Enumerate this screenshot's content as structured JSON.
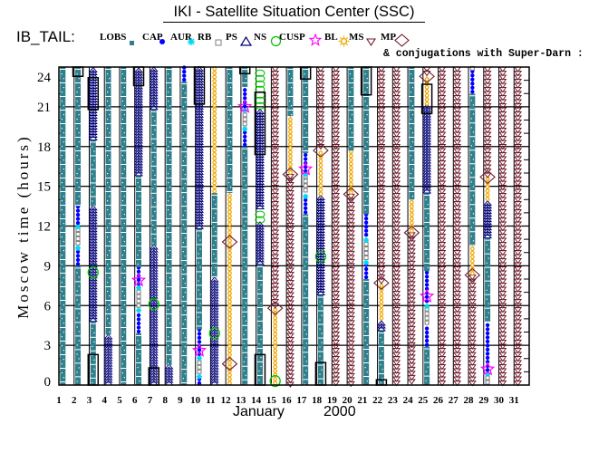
{
  "title": "IKI - Satellite Situation Center (SSC)",
  "legend": {
    "prefix": "IB_TAIL:",
    "items": [
      {
        "label": "LOBS",
        "icon": "teal-square",
        "color": "#2f7f8c"
      },
      {
        "label": "CAP",
        "icon": "blue-dot",
        "color": "#0000ff"
      },
      {
        "label": "AUR",
        "icon": "cyan-asterisk",
        "color": "#00d8f0"
      },
      {
        "label": "RB",
        "icon": "gray-square",
        "color": "#7f7f7f"
      },
      {
        "label": "PS",
        "icon": "navy-triangle",
        "color": "#000078"
      },
      {
        "label": "NS",
        "icon": "green-circle",
        "color": "#00c000"
      },
      {
        "label": "CUSP",
        "icon": "magenta-star",
        "color": "#ff00ff"
      },
      {
        "label": "BL",
        "icon": "orange-sun",
        "color": "#f0a800"
      },
      {
        "label": "MS",
        "icon": "maroon-down-triangle",
        "color": "#701c2c"
      },
      {
        "label": "MP",
        "icon": "maroon-diamond",
        "color": "#701c2c"
      }
    ],
    "note": "& conjugations with Super-Darn :"
  },
  "chart_data": {
    "type": "bar",
    "title": "IKI - Satellite Situation Center (SSC)",
    "ylabel": "Moscow time (hours)",
    "xlabel_month": "January",
    "xlabel_year": "2000",
    "ylim": [
      0,
      24
    ],
    "yticks": [
      0,
      3,
      6,
      9,
      12,
      15,
      18,
      21,
      24
    ],
    "grid": true,
    "conjugation_color": "#000000",
    "categories": [
      "1",
      "2",
      "3",
      "4",
      "5",
      "6",
      "7",
      "8",
      "9",
      "10",
      "11",
      "12",
      "13",
      "14",
      "15",
      "16",
      "17",
      "18",
      "19",
      "20",
      "21",
      "22",
      "23",
      "24",
      "25",
      "26",
      "27",
      "28",
      "29",
      "30",
      "31"
    ],
    "days": [
      {
        "segments": [
          [
            "LOBS",
            0,
            24
          ]
        ]
      },
      {
        "segments": [
          [
            "LOBS",
            0,
            9
          ],
          [
            "CAP",
            9,
            10.2
          ],
          [
            "AUR",
            10.2,
            10.5
          ],
          [
            "RB",
            10.5,
            11.8
          ],
          [
            "AUR",
            11.8,
            12.1
          ],
          [
            "CAP",
            12.1,
            13.5
          ],
          [
            "LOBS",
            13.5,
            24
          ]
        ],
        "conjugations": [
          [
            23.3,
            24
          ]
        ]
      },
      {
        "segments": [
          [
            "LOBS",
            0,
            4.8
          ],
          [
            "PS",
            4.8,
            13.5
          ],
          [
            "LOBS",
            13.5,
            18.5
          ],
          [
            "PS",
            18.5,
            24
          ]
        ],
        "markers": [
          [
            "NS",
            8.5
          ]
        ],
        "conjugations": [
          [
            0,
            2.3
          ],
          [
            20.8,
            23.2
          ]
        ]
      },
      {
        "segments": [
          [
            "PS",
            0,
            3.8
          ],
          [
            "LOBS",
            3.8,
            24
          ]
        ]
      },
      {
        "segments": [
          [
            "LOBS",
            0,
            24
          ]
        ]
      },
      {
        "segments": [
          [
            "LOBS",
            0,
            3.9
          ],
          [
            "CAP",
            3.9,
            5.5
          ],
          [
            "AUR",
            5.5,
            5.8
          ],
          [
            "RB",
            5.8,
            7.2
          ],
          [
            "AUR",
            7.2,
            7.5
          ],
          [
            "CAP",
            7.5,
            8.9
          ],
          [
            "LOBS",
            8.9,
            15.8
          ],
          [
            "PS",
            15.8,
            24
          ]
        ],
        "markers": [
          [
            "CUSP",
            7.9
          ]
        ],
        "conjugations": [
          [
            22.6,
            24
          ]
        ]
      },
      {
        "segments": [
          [
            "PS",
            0,
            10.5
          ],
          [
            "LOBS",
            10.5,
            20.8
          ],
          [
            "PS",
            20.8,
            24
          ]
        ],
        "markers": [
          [
            "NS",
            6.1
          ]
        ],
        "conjugations": [
          [
            0,
            1.3
          ]
        ]
      },
      {
        "segments": [
          [
            "PS",
            0,
            1.5
          ],
          [
            "LOBS",
            1.5,
            24
          ]
        ]
      },
      {
        "segments": [
          [
            "LOBS",
            0,
            22.9
          ],
          [
            "CAP",
            22.9,
            24
          ]
        ]
      },
      {
        "segments": [
          [
            "CAP",
            0,
            0.5
          ],
          [
            "AUR",
            0.5,
            0.8
          ],
          [
            "RB",
            0.8,
            1.9
          ],
          [
            "AUR",
            1.9,
            2.2
          ],
          [
            "CAP",
            2.2,
            4.2
          ],
          [
            "LOBS",
            4.2,
            11.8
          ],
          [
            "PS",
            11.8,
            24
          ]
        ],
        "markers": [
          [
            "CUSP",
            2.6
          ]
        ],
        "conjugations": [
          [
            21.2,
            24
          ]
        ]
      },
      {
        "segments": [
          [
            "PS",
            0,
            8.1
          ],
          [
            "LOBS",
            8.1,
            14.5
          ],
          [
            "BL",
            14.5,
            24
          ]
        ],
        "markers": [
          [
            "NS",
            3.9
          ]
        ]
      },
      {
        "segments": [
          [
            "BL",
            0,
            14.5
          ],
          [
            "LOBS",
            14.5,
            24
          ]
        ],
        "markers": [
          [
            "MP",
            10.8
          ],
          [
            "MP",
            1.6
          ]
        ]
      },
      {
        "segments": [
          [
            "LOBS",
            0,
            18
          ],
          [
            "CAP",
            18,
            19.2
          ],
          [
            "AUR",
            19.2,
            19.5
          ],
          [
            "RB",
            19.5,
            20.6
          ],
          [
            "AUR",
            20.6,
            20.9
          ],
          [
            "CAP",
            20.9,
            22.5
          ],
          [
            "LOBS",
            22.5,
            24
          ]
        ],
        "markers": [
          [
            "CUSP",
            21
          ]
        ],
        "conjugations": [
          [
            23.5,
            24
          ]
        ]
      },
      {
        "segments": [
          [
            "LOBS",
            0,
            9.1
          ],
          [
            "PS",
            9.1,
            12.2
          ],
          [
            "NS",
            12.2,
            13.3
          ],
          [
            "PS",
            13.3,
            20.8
          ],
          [
            "NS",
            20.8,
            24
          ]
        ],
        "conjugations": [
          [
            0,
            2.3
          ],
          [
            17.4,
            22.1
          ]
        ]
      },
      {
        "segments": [
          [
            "BL",
            0,
            5.8
          ],
          [
            "MS",
            5.8,
            24
          ]
        ],
        "markers": [
          [
            "MP",
            5.8
          ],
          [
            "NS",
            0.3
          ]
        ]
      },
      {
        "segments": [
          [
            "MS",
            0,
            15.9
          ],
          [
            "BL",
            15.9,
            20.3
          ],
          [
            "LOBS",
            20.3,
            24
          ]
        ],
        "markers": [
          [
            "MP",
            15.9
          ]
        ]
      },
      {
        "segments": [
          [
            "LOBS",
            0,
            12.9
          ],
          [
            "CAP",
            12.9,
            14.1
          ],
          [
            "AUR",
            14.1,
            14.5
          ],
          [
            "RB",
            14.5,
            15.8
          ],
          [
            "AUR",
            15.8,
            16
          ],
          [
            "CAP",
            16,
            17.5
          ],
          [
            "LOBS",
            17.5,
            24
          ]
        ],
        "markers": [
          [
            "CUSP",
            16.3
          ]
        ],
        "conjugations": [
          [
            23.1,
            24
          ]
        ]
      },
      {
        "segments": [
          [
            "LOBS",
            0,
            6.8
          ],
          [
            "PS",
            6.8,
            14.3
          ],
          [
            "BL",
            14.3,
            17.7
          ],
          [
            "MS",
            17.7,
            24
          ]
        ],
        "markers": [
          [
            "MP",
            17.7
          ],
          [
            "NS",
            9.7
          ]
        ],
        "conjugations": [
          [
            0,
            1.7
          ]
        ]
      },
      {
        "segments": [
          [
            "MS",
            0,
            24
          ]
        ]
      },
      {
        "segments": [
          [
            "MS",
            0,
            14.4
          ],
          [
            "BL",
            14.4,
            17.7
          ],
          [
            "LOBS",
            17.7,
            24
          ]
        ],
        "markers": [
          [
            "MP",
            14.4
          ]
        ]
      },
      {
        "segments": [
          [
            "LOBS",
            0,
            8
          ],
          [
            "CAP",
            8,
            9.1
          ],
          [
            "AUR",
            9.1,
            9.4
          ],
          [
            "RB",
            9.4,
            10.8
          ],
          [
            "AUR",
            10.8,
            11.2
          ],
          [
            "CAP",
            11.2,
            12.9
          ],
          [
            "LOBS",
            12.9,
            24
          ]
        ],
        "conjugations": [
          [
            21.9,
            24
          ]
        ]
      },
      {
        "segments": [
          [
            "LOBS",
            0,
            4.1
          ],
          [
            "PS",
            4.1,
            4.9
          ],
          [
            "BL",
            4.9,
            7.7
          ],
          [
            "MS",
            7.7,
            24
          ]
        ],
        "markers": [
          [
            "MP",
            7.7
          ]
        ],
        "conjugations": [
          [
            0,
            0.4
          ]
        ]
      },
      {
        "segments": [
          [
            "MS",
            0,
            24
          ]
        ]
      },
      {
        "segments": [
          [
            "MS",
            0,
            11.5
          ],
          [
            "BL",
            11.5,
            14
          ],
          [
            "LOBS",
            14,
            24
          ]
        ],
        "markers": [
          [
            "MP",
            11.5
          ]
        ]
      },
      {
        "segments": [
          [
            "LOBS",
            0,
            2.9
          ],
          [
            "CAP",
            2.9,
            4.5
          ],
          [
            "RB",
            4.5,
            5.8
          ],
          [
            "AUR",
            5.8,
            6.2
          ],
          [
            "CAP",
            6.2,
            8.6
          ],
          [
            "LOBS",
            8.6,
            14.5
          ],
          [
            "PS",
            14.5,
            21.1
          ],
          [
            "BL",
            21.1,
            23.3
          ],
          [
            "MS",
            23.3,
            24
          ]
        ],
        "markers": [
          [
            "MP",
            23.3
          ],
          [
            "CUSP",
            6.7
          ]
        ],
        "conjugations": [
          [
            20.5,
            22.7
          ]
        ]
      },
      {
        "segments": [
          [
            "MS",
            0,
            24
          ]
        ]
      },
      {
        "segments": [
          [
            "MS",
            0,
            24
          ]
        ]
      },
      {
        "segments": [
          [
            "MS",
            0,
            8.3
          ],
          [
            "BL",
            8.3,
            10.5
          ],
          [
            "LOBS",
            10.5,
            22
          ],
          [
            "CAP",
            22,
            23.7
          ],
          [
            "RB",
            23.7,
            24
          ]
        ],
        "markers": [
          [
            "MP",
            8.3
          ]
        ]
      },
      {
        "segments": [
          [
            "RB",
            0,
            0.7
          ],
          [
            "AUR",
            0.7,
            1
          ],
          [
            "CAP",
            1,
            4.8
          ],
          [
            "LOBS",
            4.8,
            11.1
          ],
          [
            "PS",
            11.1,
            13.9
          ],
          [
            "BL",
            13.9,
            15.7
          ],
          [
            "MS",
            15.7,
            24
          ]
        ],
        "markers": [
          [
            "MP",
            15.7
          ],
          [
            "CUSP",
            1.2
          ]
        ]
      },
      {
        "segments": [
          [
            "MS",
            0,
            24
          ]
        ]
      },
      {
        "segments": [
          [
            "MS",
            0,
            24
          ]
        ]
      }
    ]
  }
}
